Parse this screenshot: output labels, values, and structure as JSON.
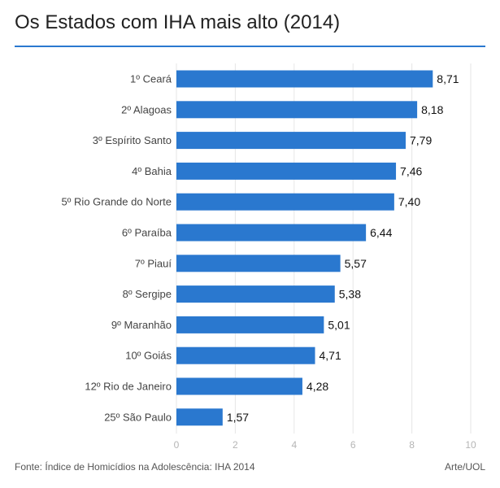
{
  "page": {
    "title": "Os Estados com IHA mais alto (2014)",
    "source": "Fonte: Índice de Homicídios na Adolescência: IHA 2014",
    "credit": "Arte/UOL"
  },
  "colors": {
    "bar": "#2a78cf",
    "rule": "#2a78cf",
    "grid": "#e6e6e6",
    "tick_text": "#b5b5b5",
    "label_text": "#444444",
    "value_text": "#111111"
  },
  "chart_data": {
    "type": "bar",
    "orientation": "horizontal",
    "categories": [
      "1º Ceará",
      "2º Alagoas",
      "3º Espírito Santo",
      "4º Bahia",
      "5º Rio Grande do Norte",
      "6º Paraíba",
      "7º Piauí",
      "8º Sergipe",
      "9º Maranhão",
      "10º Goiás",
      "12º Rio de Janeiro",
      "25º São Paulo"
    ],
    "values": [
      8.71,
      8.18,
      7.79,
      7.46,
      7.4,
      6.44,
      5.57,
      5.38,
      5.01,
      4.71,
      4.28,
      1.57
    ],
    "value_labels": [
      "8,71",
      "8,18",
      "7,79",
      "7,46",
      "7,40",
      "6,44",
      "5,57",
      "5,38",
      "5,01",
      "4,71",
      "4,28",
      "1,57"
    ],
    "xlim": [
      0,
      10
    ],
    "xticks": [
      0,
      2,
      4,
      6,
      8,
      10
    ],
    "xtick_labels": [
      "0",
      "2",
      "4",
      "6",
      "8",
      "10"
    ],
    "grid": "vertical",
    "xlabel": "",
    "ylabel": ""
  }
}
